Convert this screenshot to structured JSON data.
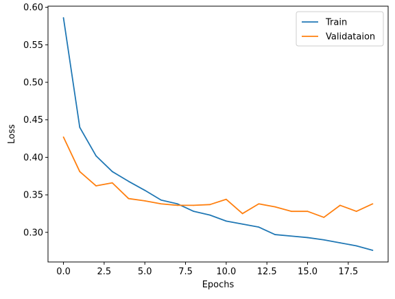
{
  "chart_data": {
    "type": "line",
    "title": "",
    "xlabel": "Epochs",
    "ylabel": "Loss",
    "xlim": [
      -0.95,
      19.95
    ],
    "ylim": [
      0.2605,
      0.6015
    ],
    "xticks": [
      0.0,
      2.5,
      5.0,
      7.5,
      10.0,
      12.5,
      15.0,
      17.5
    ],
    "xtick_labels": [
      "0.0",
      "2.5",
      "5.0",
      "7.5",
      "10.0",
      "12.5",
      "15.0",
      "17.5"
    ],
    "yticks": [
      0.3,
      0.35,
      0.4,
      0.45,
      0.5,
      0.55,
      0.6
    ],
    "ytick_labels": [
      "0.30",
      "0.35",
      "0.40",
      "0.45",
      "0.50",
      "0.55",
      "0.60"
    ],
    "grid": false,
    "legend_position": "top-right",
    "x": [
      0,
      1,
      2,
      3,
      4,
      5,
      6,
      7,
      8,
      9,
      10,
      11,
      12,
      13,
      14,
      15,
      16,
      17,
      18,
      19
    ],
    "series": [
      {
        "name": "Train",
        "color": "#1f77b4",
        "values": [
          0.586,
          0.44,
          0.402,
          0.381,
          0.368,
          0.356,
          0.343,
          0.338,
          0.328,
          0.323,
          0.315,
          0.311,
          0.307,
          0.297,
          0.295,
          0.293,
          0.29,
          0.286,
          0.282,
          0.276
        ]
      },
      {
        "name": "Validataion",
        "color": "#ff7f0e",
        "values": [
          0.427,
          0.381,
          0.362,
          0.366,
          0.345,
          0.342,
          0.338,
          0.336,
          0.336,
          0.337,
          0.344,
          0.325,
          0.338,
          0.334,
          0.328,
          0.328,
          0.32,
          0.336,
          0.328,
          0.338
        ]
      }
    ]
  }
}
